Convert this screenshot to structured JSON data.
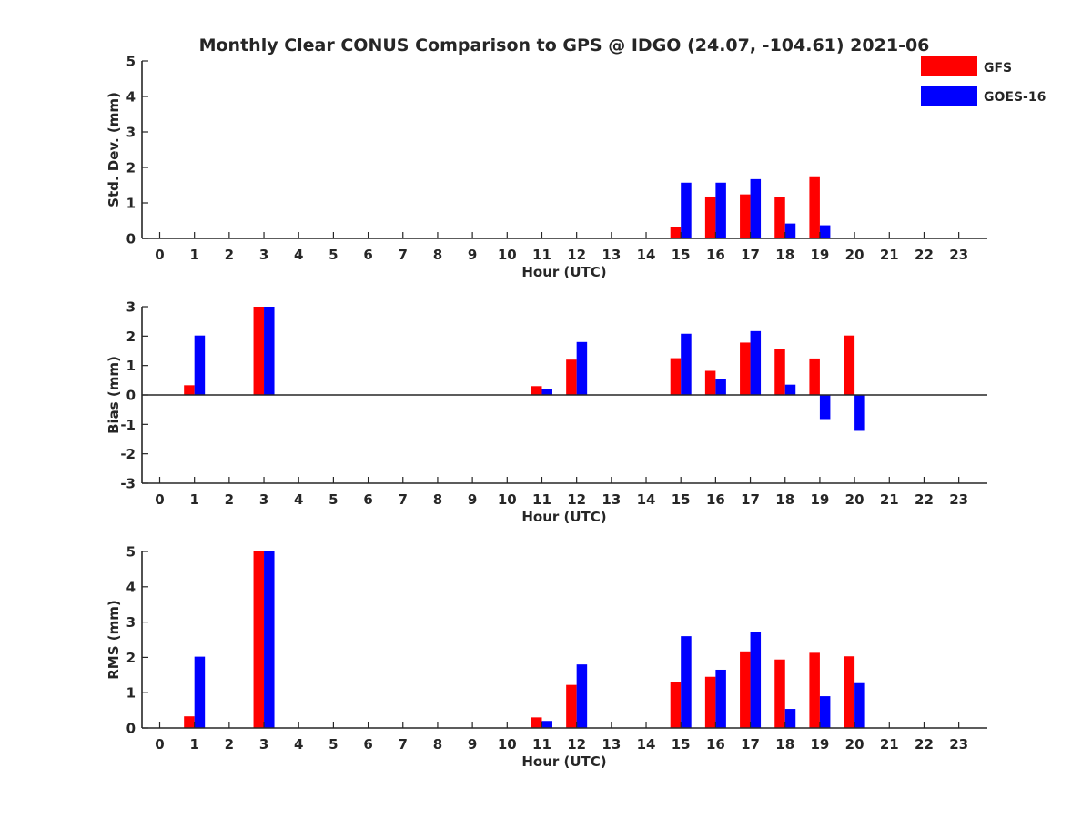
{
  "title": "Monthly Clear CONUS Comparison to GPS @ IDGO (24.07, -104.61) 2021-06",
  "legend": [
    {
      "label": "GFS",
      "color": "#ff0000"
    },
    {
      "label": "GOES-16",
      "color": "#0000ff"
    }
  ],
  "colors": {
    "axis": "#262626",
    "background": "#ffffff"
  },
  "chart_data": [
    {
      "type": "bar",
      "ylabel": "Std. Dev. (mm)",
      "xlabel": "Hour (UTC)",
      "ylim": [
        0,
        5
      ],
      "yticks": [
        0,
        1,
        2,
        3,
        4,
        5
      ],
      "categories": [
        "0",
        "1",
        "2",
        "3",
        "4",
        "5",
        "6",
        "7",
        "8",
        "9",
        "10",
        "11",
        "12",
        "13",
        "14",
        "15",
        "16",
        "17",
        "18",
        "19",
        "20",
        "21",
        "22",
        "23"
      ],
      "zero_line": false,
      "series": [
        {
          "name": "GFS",
          "color": "#ff0000",
          "values": [
            null,
            null,
            null,
            null,
            null,
            null,
            null,
            null,
            null,
            null,
            null,
            null,
            null,
            null,
            null,
            0.32,
            1.18,
            1.24,
            1.16,
            1.75,
            null,
            null,
            null,
            null
          ]
        },
        {
          "name": "GOES-16",
          "color": "#0000ff",
          "values": [
            null,
            null,
            null,
            null,
            null,
            null,
            null,
            null,
            null,
            null,
            null,
            null,
            null,
            null,
            null,
            1.57,
            1.57,
            1.67,
            0.42,
            0.37,
            null,
            null,
            null,
            null
          ]
        }
      ]
    },
    {
      "type": "bar",
      "ylabel": "Bias (mm)",
      "xlabel": "Hour (UTC)",
      "ylim": [
        -3,
        3
      ],
      "yticks": [
        -3,
        -2,
        -1,
        0,
        1,
        2,
        3
      ],
      "categories": [
        "0",
        "1",
        "2",
        "3",
        "4",
        "5",
        "6",
        "7",
        "8",
        "9",
        "10",
        "11",
        "12",
        "13",
        "14",
        "15",
        "16",
        "17",
        "18",
        "19",
        "20",
        "21",
        "22",
        "23"
      ],
      "zero_line": true,
      "series": [
        {
          "name": "GFS",
          "color": "#ff0000",
          "values": [
            null,
            0.33,
            null,
            3.0,
            null,
            null,
            null,
            null,
            null,
            null,
            null,
            0.3,
            1.2,
            null,
            null,
            1.25,
            0.82,
            1.78,
            1.56,
            1.24,
            2.02,
            null,
            null,
            null
          ]
        },
        {
          "name": "GOES-16",
          "color": "#0000ff",
          "values": [
            null,
            2.02,
            null,
            3.0,
            null,
            null,
            null,
            null,
            null,
            null,
            null,
            0.2,
            1.8,
            null,
            null,
            2.08,
            0.53,
            2.17,
            0.35,
            -0.82,
            -1.22,
            null,
            null,
            null
          ]
        }
      ]
    },
    {
      "type": "bar",
      "ylabel": "RMS (mm)",
      "xlabel": "Hour (UTC)",
      "ylim": [
        0,
        5
      ],
      "yticks": [
        0,
        1,
        2,
        3,
        4,
        5
      ],
      "categories": [
        "0",
        "1",
        "2",
        "3",
        "4",
        "5",
        "6",
        "7",
        "8",
        "9",
        "10",
        "11",
        "12",
        "13",
        "14",
        "15",
        "16",
        "17",
        "18",
        "19",
        "20",
        "21",
        "22",
        "23"
      ],
      "zero_line": false,
      "series": [
        {
          "name": "GFS",
          "color": "#ff0000",
          "values": [
            null,
            0.33,
            null,
            5.0,
            null,
            null,
            null,
            null,
            null,
            null,
            null,
            0.3,
            1.22,
            null,
            null,
            1.29,
            1.45,
            2.17,
            1.94,
            2.13,
            2.03,
            null,
            null,
            null
          ]
        },
        {
          "name": "GOES-16",
          "color": "#0000ff",
          "values": [
            null,
            2.02,
            null,
            5.0,
            null,
            null,
            null,
            null,
            null,
            null,
            null,
            0.2,
            1.8,
            null,
            null,
            2.6,
            1.65,
            2.73,
            0.54,
            0.9,
            1.27,
            null,
            null,
            null
          ]
        }
      ]
    }
  ]
}
